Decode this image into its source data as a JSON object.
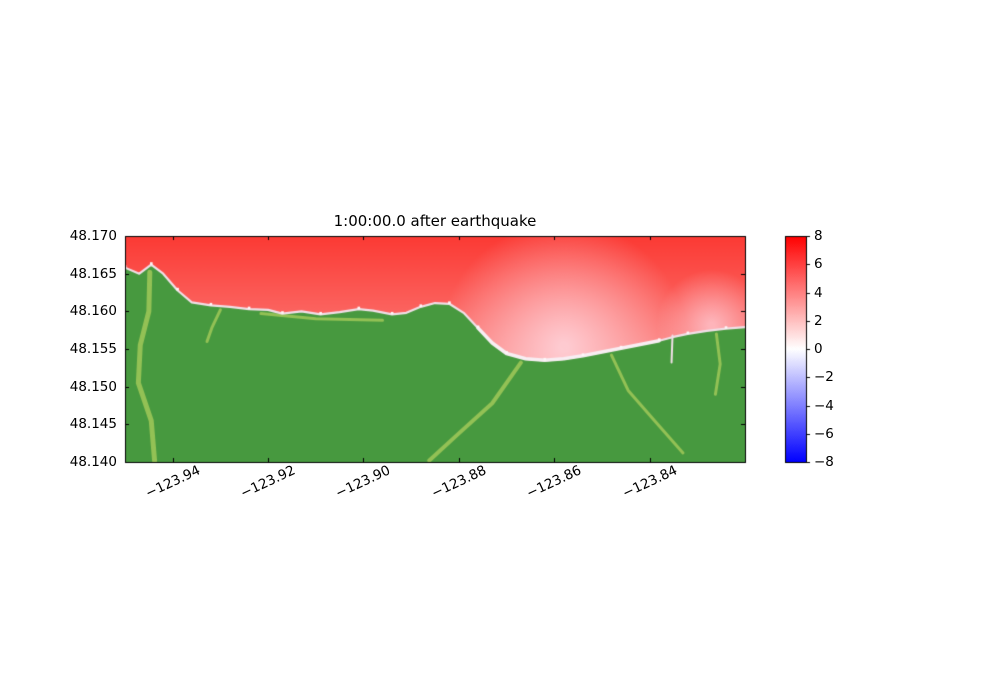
{
  "figure": {
    "background": "#ffffff"
  },
  "chart_data": {
    "type": "heatmap",
    "title": "1:00:00.0 after earthquake",
    "xlabel": "",
    "ylabel": "",
    "xlim": [
      -123.95,
      -123.82
    ],
    "ylim": [
      48.14,
      48.17
    ],
    "xticks": [
      -123.94,
      -123.92,
      -123.9,
      -123.88,
      -123.86,
      -123.84
    ],
    "xtick_labels": [
      "−123.94",
      "−123.92",
      "−123.90",
      "−123.88",
      "−123.86",
      "−123.84"
    ],
    "yticks": [
      48.14,
      48.145,
      48.15,
      48.155,
      48.16,
      48.165,
      48.17
    ],
    "ytick_labels": [
      "48.140",
      "48.145",
      "48.150",
      "48.155",
      "48.160",
      "48.165",
      "48.170"
    ],
    "grid": false,
    "legend": "none",
    "colorbar": {
      "position": "right",
      "vmin": -8,
      "vmax": 8,
      "tick_values": [
        8,
        6,
        4,
        2,
        0,
        -2,
        -4,
        -6,
        -8
      ],
      "tick_labels": [
        "8",
        "6",
        "4",
        "2",
        "0",
        "−2",
        "−4",
        "−6",
        "−8"
      ],
      "cmap": "blue-white-red",
      "cmap_stops": [
        "#0000ff",
        "#8080ff",
        "#ffffff",
        "#ff8080",
        "#ff0000"
      ]
    },
    "water": {
      "description": "sea-surface elevation, red = positive wave of roughly 4 to 7",
      "value_top": 6.5,
      "value_near_shore": 3.5,
      "value_in_bay": 2.0,
      "color_top": "#fb3a34",
      "color_near_shore": "#fb8d8b",
      "bay_light_color": "rgba(255,212,219,0.9)",
      "bay_center": [
        -123.858,
        48.1553
      ],
      "bay_radius_px": 125,
      "right_light_center": [
        -123.827,
        48.1582
      ],
      "right_light_radius_px": 55
    },
    "land": {
      "base_color": "#47993f",
      "streak_color": "#93c155",
      "streaks": [
        {
          "w": 5,
          "pts": [
            [
              -123.9448,
              48.1652
            ],
            [
              -123.945,
              48.16
            ],
            [
              -123.9468,
              48.1555
            ],
            [
              -123.9472,
              48.1505
            ],
            [
              -123.9445,
              48.1455
            ],
            [
              -123.9438,
              48.1402
            ]
          ]
        },
        {
          "w": 3,
          "pts": [
            [
              -123.93,
              48.1602
            ],
            [
              -123.9318,
              48.1578
            ],
            [
              -123.9328,
              48.156
            ]
          ]
        },
        {
          "w": 3,
          "pts": [
            [
              -123.9215,
              48.1597
            ],
            [
              -123.91,
              48.159
            ],
            [
              -123.896,
              48.1588
            ]
          ]
        },
        {
          "w": 4,
          "pts": [
            [
              -123.867,
              48.1532
            ],
            [
              -123.873,
              48.1478
            ],
            [
              -123.88,
              48.1438
            ],
            [
              -123.8862,
              48.1402
            ]
          ]
        },
        {
          "w": 3,
          "pts": [
            [
              -123.848,
              48.1542
            ],
            [
              -123.8445,
              48.1495
            ],
            [
              -123.839,
              48.1455
            ],
            [
              -123.833,
              48.1412
            ]
          ]
        },
        {
          "w": 3,
          "pts": [
            [
              -123.826,
              48.157
            ],
            [
              -123.8252,
              48.153
            ],
            [
              -123.8262,
              48.149
            ]
          ]
        }
      ]
    },
    "shore": {
      "color": "#f1dfe7",
      "highlight_color": "#f8eef3",
      "speckle_color": "#fdf7f9",
      "bay_segment": [
        22,
        32
      ],
      "notches": [
        {
          "w": 2,
          "pts": [
            [
              -123.8352,
              48.1568
            ],
            [
              -123.8354,
              48.1532
            ]
          ]
        }
      ]
    },
    "coastline": [
      [
        -123.95,
        48.1658
      ],
      [
        -123.947,
        48.165
      ],
      [
        -123.9445,
        48.1662
      ],
      [
        -123.942,
        48.165
      ],
      [
        -123.939,
        48.1628
      ],
      [
        -123.936,
        48.1612
      ],
      [
        -123.932,
        48.1608
      ],
      [
        -123.928,
        48.1606
      ],
      [
        -123.924,
        48.1603
      ],
      [
        -123.92,
        48.1602
      ],
      [
        -123.917,
        48.1597
      ],
      [
        -123.913,
        48.16
      ],
      [
        -123.909,
        48.1596
      ],
      [
        -123.905,
        48.1599
      ],
      [
        -123.901,
        48.1603
      ],
      [
        -123.898,
        48.1601
      ],
      [
        -123.894,
        48.1596
      ],
      [
        -123.891,
        48.1598
      ],
      [
        -123.888,
        48.1606
      ],
      [
        -123.885,
        48.1611
      ],
      [
        -123.882,
        48.161
      ],
      [
        -123.879,
        48.1598
      ],
      [
        -123.876,
        48.1578
      ],
      [
        -123.873,
        48.1558
      ],
      [
        -123.87,
        48.1544
      ],
      [
        -123.866,
        48.1537
      ],
      [
        -123.862,
        48.1535
      ],
      [
        -123.858,
        48.1537
      ],
      [
        -123.854,
        48.1541
      ],
      [
        -123.85,
        48.1546
      ],
      [
        -123.846,
        48.1551
      ],
      [
        -123.842,
        48.1556
      ],
      [
        -123.838,
        48.1561
      ],
      [
        -123.835,
        48.1566
      ],
      [
        -123.832,
        48.157
      ],
      [
        -123.828,
        48.1574
      ],
      [
        -123.824,
        48.1577
      ],
      [
        -123.82,
        48.1579
      ]
    ],
    "frame_color": "#000000"
  }
}
